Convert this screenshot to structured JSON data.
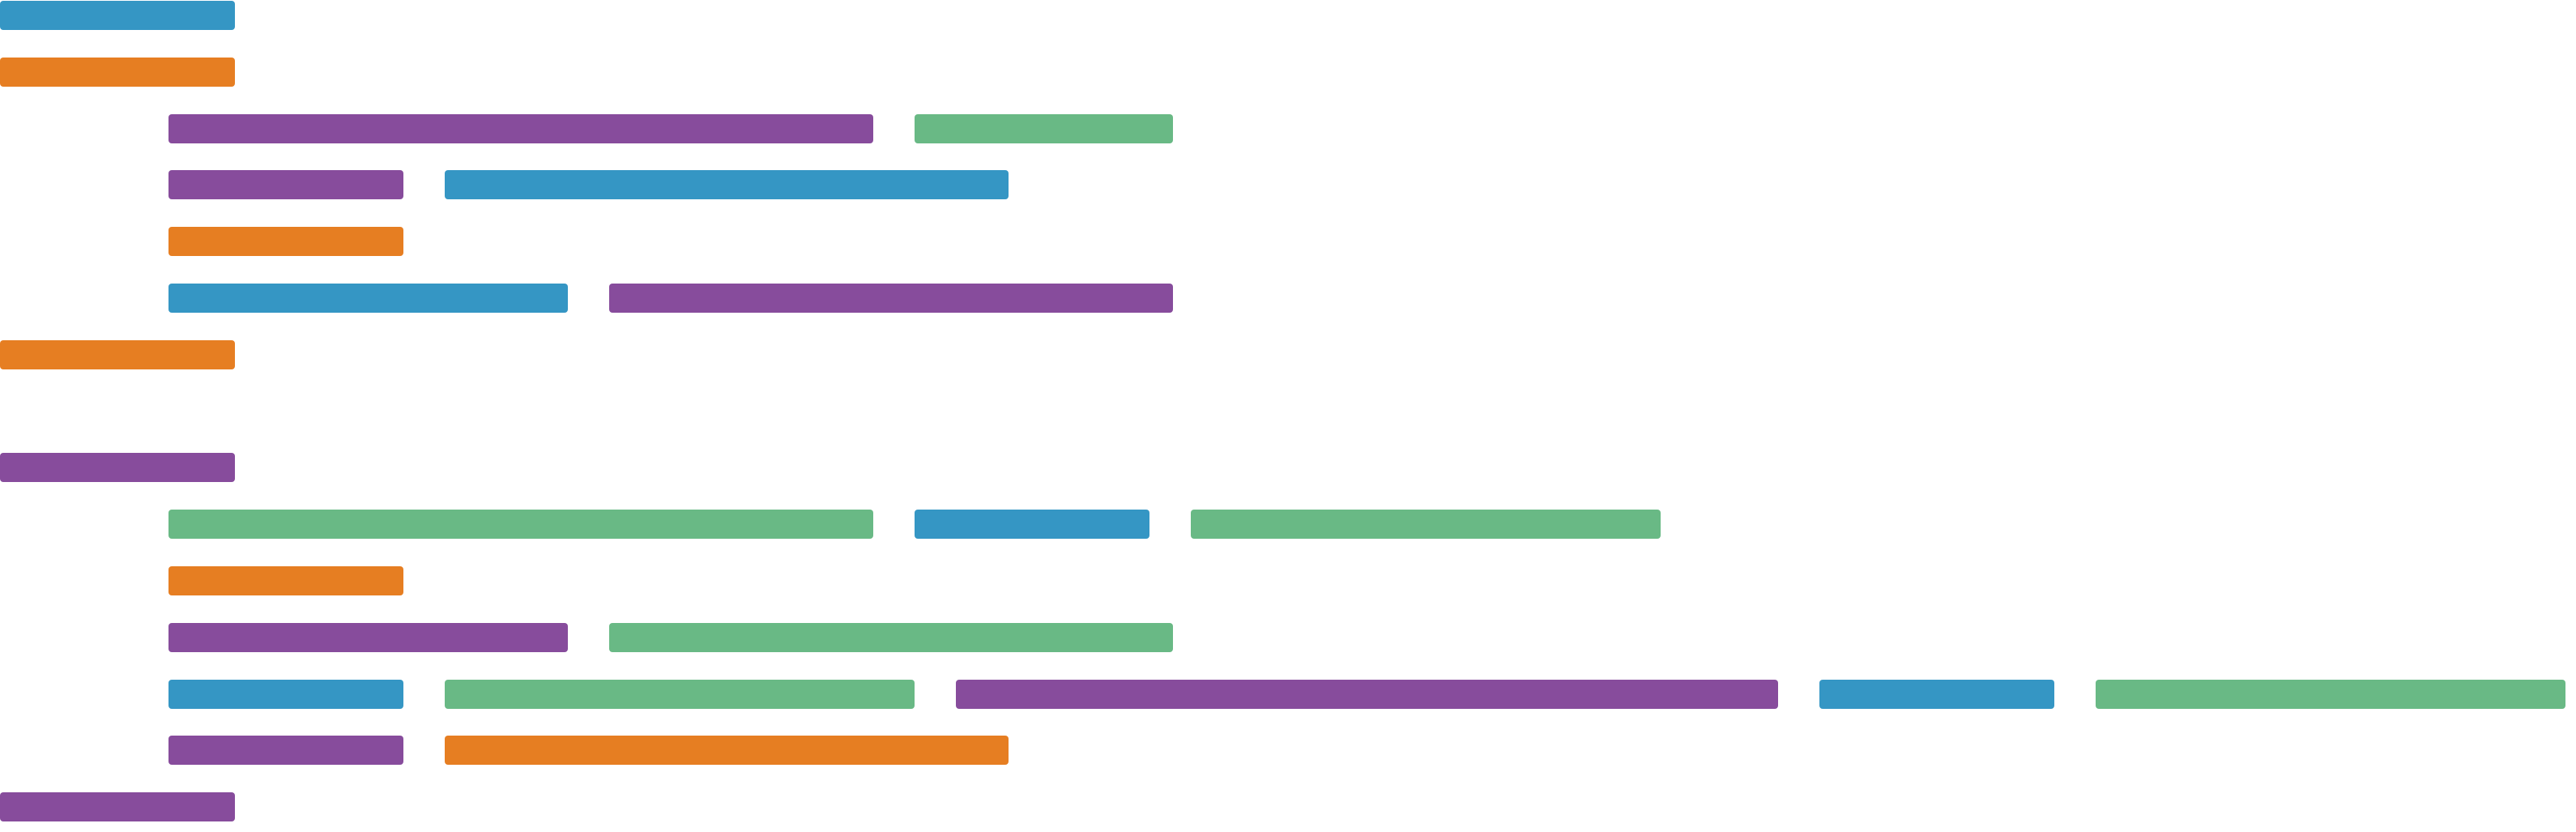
{
  "colors": {
    "blue": "#3596c4",
    "orange": "#e67e22",
    "purple": "#874c9c",
    "green": "#69b985"
  },
  "lines": [
    {
      "indent": 0,
      "segments": [
        {
          "color": "blue",
          "weight": 1
        }
      ]
    },
    {
      "indent": 0,
      "segments": [
        {
          "color": "orange",
          "weight": 1
        }
      ]
    },
    {
      "indent": 1,
      "segments": [
        {
          "color": "purple",
          "weight": 3
        },
        {
          "color": "green",
          "weight": 1.1
        }
      ]
    },
    {
      "indent": 1,
      "segments": [
        {
          "color": "purple",
          "weight": 1
        },
        {
          "color": "blue",
          "weight": 2.4
        }
      ]
    },
    {
      "indent": 1,
      "segments": [
        {
          "color": "orange",
          "weight": 1
        }
      ]
    },
    {
      "indent": 1,
      "segments": [
        {
          "color": "blue",
          "weight": 1.7
        },
        {
          "color": "purple",
          "weight": 2.4
        }
      ]
    },
    {
      "indent": 0,
      "segments": [
        {
          "color": "orange",
          "weight": 1
        }
      ]
    },
    {
      "indent": 0,
      "segments": []
    },
    {
      "indent": 0,
      "segments": [
        {
          "color": "purple",
          "weight": 1
        }
      ]
    },
    {
      "indent": 1,
      "segments": [
        {
          "color": "green",
          "weight": 3
        },
        {
          "color": "blue",
          "weight": 1
        },
        {
          "color": "green",
          "weight": 2
        }
      ]
    },
    {
      "indent": 1,
      "segments": [
        {
          "color": "orange",
          "weight": 1
        }
      ]
    },
    {
      "indent": 1,
      "segments": [
        {
          "color": "purple",
          "weight": 1.7
        },
        {
          "color": "green",
          "weight": 2.4
        }
      ]
    },
    {
      "indent": 1,
      "segments": [
        {
          "color": "blue",
          "weight": 1
        },
        {
          "color": "green",
          "weight": 2
        },
        {
          "color": "purple",
          "weight": 3.5
        },
        {
          "color": "blue",
          "weight": 1
        },
        {
          "color": "green",
          "weight": 2
        }
      ]
    },
    {
      "indent": 1,
      "segments": [
        {
          "color": "purple",
          "weight": 1
        },
        {
          "color": "orange",
          "weight": 2.4
        }
      ]
    },
    {
      "indent": 0,
      "segments": [
        {
          "color": "purple",
          "weight": 1
        }
      ]
    }
  ]
}
